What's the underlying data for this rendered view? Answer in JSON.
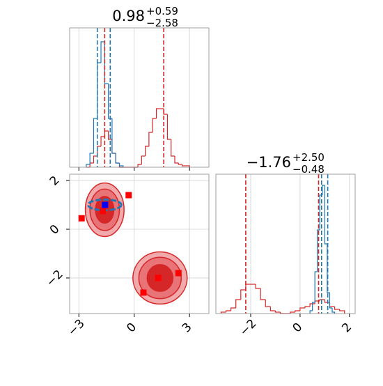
{
  "chart_data": [
    {
      "type": "histogram",
      "title": {
        "value": "0.98",
        "upper": "+0.59",
        "lower": "−2.58"
      },
      "xlim": [
        -3.5,
        4.05
      ],
      "ylim": [
        0,
        1
      ],
      "xticks": [
        -3,
        0,
        3
      ],
      "tick_labels": false,
      "grid": true,
      "series": [
        {
          "color": "#d62728",
          "bins": [
            -2.6,
            -2.4,
            -2.2,
            -2.0,
            -1.8,
            -1.6,
            -1.4,
            -1.2,
            -1.0,
            -0.8,
            -0.6,
            -0.4,
            -0.2,
            0,
            0.2,
            0.4,
            0.6,
            0.8,
            1.0,
            1.2,
            1.4,
            1.6,
            1.8,
            2.0,
            2.2,
            2.4,
            2.6,
            2.8,
            3.0
          ],
          "values": [
            0,
            0.03,
            0.08,
            0.15,
            0.22,
            0.26,
            0.2,
            0.1,
            0.03,
            0,
            0,
            0,
            0,
            0,
            0.02,
            0.08,
            0.15,
            0.25,
            0.35,
            0.42,
            0.42,
            0.38,
            0.2,
            0.08,
            0.03,
            0.02,
            0.01,
            0.01
          ]
        },
        {
          "color": "#1f77b4",
          "bins": [
            -2.6,
            -2.4,
            -2.2,
            -2.0,
            -1.8,
            -1.6,
            -1.4,
            -1.2,
            -1.0,
            -0.8,
            -0.6
          ],
          "values": [
            0.02,
            0.1,
            0.35,
            0.75,
            0.9,
            0.6,
            0.35,
            0.1,
            0.03,
            0.01
          ]
        }
      ],
      "quantiles": [
        {
          "color": "#1f77b4",
          "values": [
            -2.0,
            -1.3
          ]
        },
        {
          "color": "#d62728",
          "values": [
            -1.6,
            1.6
          ]
        }
      ]
    },
    {
      "type": "scatter",
      "xlim": [
        -3.5,
        4.05
      ],
      "ylim": [
        -3.46,
        2.26
      ],
      "xticks": [
        {
          "value": -3,
          "label": "−3"
        },
        0,
        3
      ],
      "yticks": [
        {
          "value": -2,
          "label": "−2"
        },
        0,
        2
      ],
      "tick_labels": true,
      "grid": true,
      "contours": [
        {
          "x": -1.6,
          "y": 0.8,
          "rx": [
            1.05,
            0.8,
            0.5
          ],
          "ry": [
            1.1,
            0.85,
            0.55
          ],
          "colors": [
            "#f2a9ab",
            "#e87478",
            "#d62728"
          ]
        },
        {
          "x": 1.4,
          "y": -2.0,
          "rx": [
            1.47,
            1.15,
            0.7
          ],
          "ry": [
            1.07,
            0.85,
            0.55
          ],
          "colors": [
            "#f2a9ab",
            "#e87478",
            "#d62728"
          ]
        },
        {
          "x": -1.6,
          "y": 1.0,
          "rx": [
            0.9
          ],
          "ry": [
            0.22
          ],
          "colors": [
            "#1f77b4"
          ]
        }
      ],
      "series": [
        {
          "color": "#ff0000",
          "x": [
            -2.85,
            -1.7,
            -0.3,
            0.5,
            1.3,
            2.4
          ],
          "y": [
            0.45,
            0.75,
            1.4,
            -2.6,
            -2.0,
            -1.8
          ]
        },
        {
          "color": "#0000ff",
          "x": [
            -1.58
          ],
          "y": [
            1.0
          ]
        }
      ]
    },
    {
      "type": "histogram",
      "title": {
        "value": "−1.76",
        "upper": "+2.50",
        "lower": "−0.48"
      },
      "xlim": [
        -3.41,
        2.23
      ],
      "ylim": [
        0,
        1
      ],
      "xticks": [
        {
          "value": -2,
          "label": "−2"
        },
        0,
        2
      ],
      "tick_labels": true,
      "grid": true,
      "series": [
        {
          "color": "#d62728",
          "bins": [
            -3.2,
            -3.0,
            -2.8,
            -2.6,
            -2.4,
            -2.2,
            -2.0,
            -1.8,
            -1.6,
            -1.4,
            -1.2,
            -1.0,
            -0.8,
            -0.6,
            -0.4,
            -0.2,
            0,
            0.2,
            0.4,
            0.6,
            0.8,
            1.0,
            1.2,
            1.4,
            1.6,
            1.8
          ],
          "values": [
            0.01,
            0.02,
            0.04,
            0.1,
            0.17,
            0.21,
            0.21,
            0.18,
            0.1,
            0.05,
            0.02,
            0.01,
            0,
            0,
            0.01,
            0.02,
            0.04,
            0.05,
            0.07,
            0.09,
            0.1,
            0.08,
            0.05,
            0.03,
            0.02
          ]
        },
        {
          "color": "#1f77b4",
          "bins": [
            0.4,
            0.5,
            0.6,
            0.7,
            0.8,
            0.9,
            1.0,
            1.1,
            1.2,
            1.3,
            1.4
          ],
          "values": [
            0.02,
            0.08,
            0.3,
            0.6,
            0.85,
            0.92,
            0.5,
            0.15,
            0.04,
            0.01
          ]
        }
      ],
      "quantiles": [
        {
          "color": "#d62728",
          "values": [
            -2.2,
            0.75
          ]
        },
        {
          "color": "#1f77b4",
          "values": [
            0.87,
            1.12
          ]
        }
      ]
    }
  ]
}
